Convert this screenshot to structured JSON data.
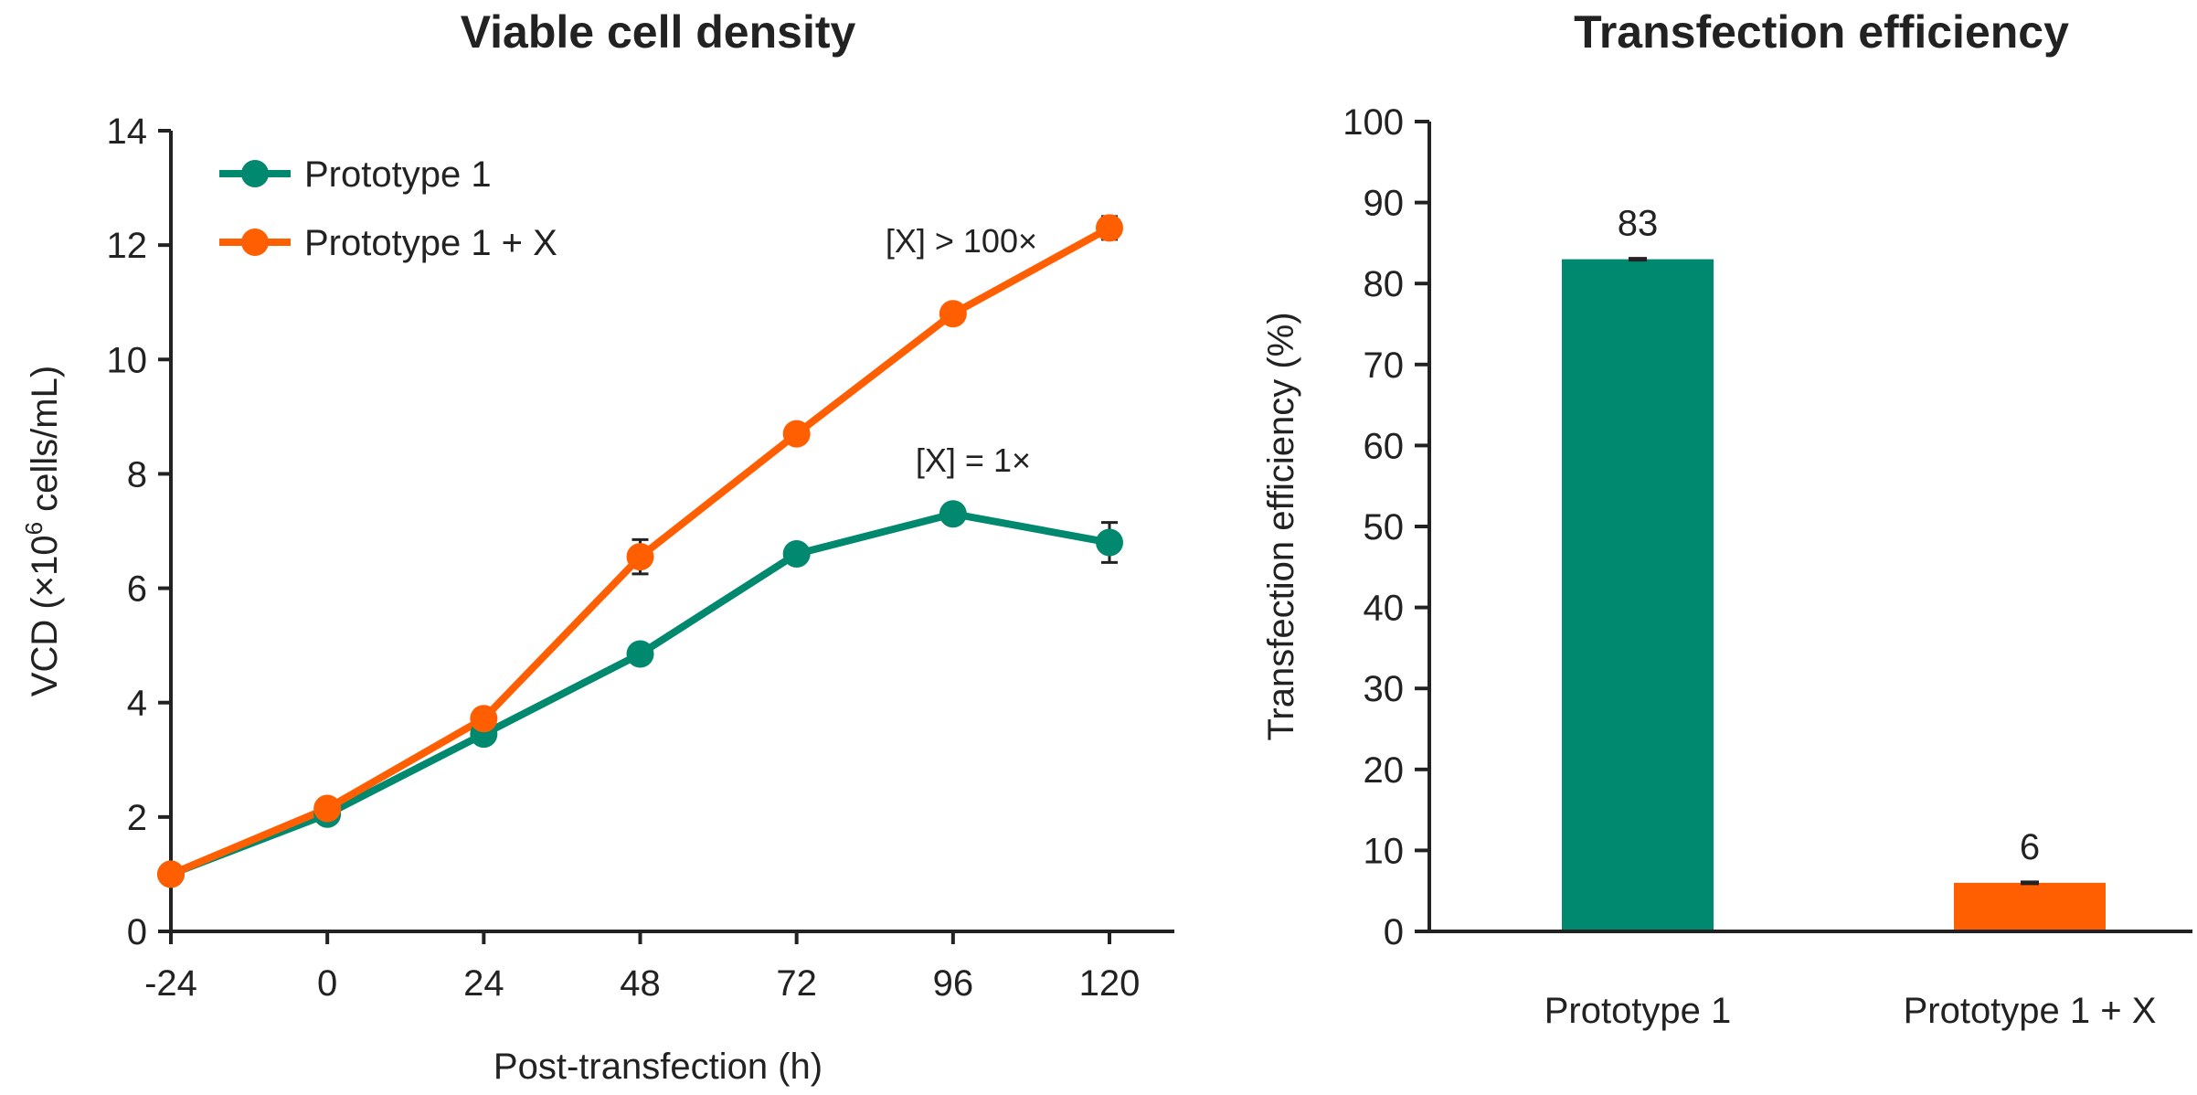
{
  "colors": {
    "prototype1": "#00896F",
    "prototype1x": "#FF5F00",
    "axis": "#222222"
  },
  "chart_data": [
    {
      "type": "line",
      "title": "Viable cell density",
      "xlabel": "Post-transfection (h)",
      "ylabel_main": "VCD (×10",
      "ylabel_sup": "6",
      "ylabel_tail": " cells/mL)",
      "x": [
        -24,
        0,
        24,
        48,
        72,
        96,
        120
      ],
      "x_ticks": [
        "-24",
        "0",
        "24",
        "48",
        "72",
        "96",
        "120"
      ],
      "ylim": [
        0,
        14
      ],
      "y_ticks": [
        "0",
        "2",
        "4",
        "6",
        "8",
        "10",
        "12",
        "14"
      ],
      "grid": false,
      "legend_position": "top-left",
      "series": [
        {
          "name": "Prototype 1",
          "color": "#00896F",
          "values": [
            1.0,
            2.05,
            3.45,
            4.85,
            6.6,
            7.3,
            6.8
          ],
          "errors": [
            0,
            0,
            0,
            0,
            0,
            0,
            0.35
          ]
        },
        {
          "name": "Prototype 1 + X",
          "color": "#FF5F00",
          "values": [
            1.0,
            2.15,
            3.72,
            6.55,
            8.7,
            10.8,
            12.3
          ],
          "errors": [
            0,
            0,
            0,
            0.3,
            0,
            0,
            0.2
          ]
        }
      ],
      "annotations": [
        "[X] > 100×",
        "[X] = 1×"
      ]
    },
    {
      "type": "bar",
      "title": "Transfection efficiency",
      "ylabel": "Transfection efficiency (%)",
      "categories": [
        "Prototype 1",
        "Prototype 1 + X"
      ],
      "values": [
        83,
        6
      ],
      "data_labels": [
        "83",
        "6"
      ],
      "colors": [
        "#00896F",
        "#FF5F00"
      ],
      "ylim": [
        0,
        100
      ],
      "y_ticks": [
        "0",
        "10",
        "20",
        "30",
        "40",
        "50",
        "60",
        "70",
        "80",
        "90",
        "100"
      ],
      "grid": false
    }
  ]
}
